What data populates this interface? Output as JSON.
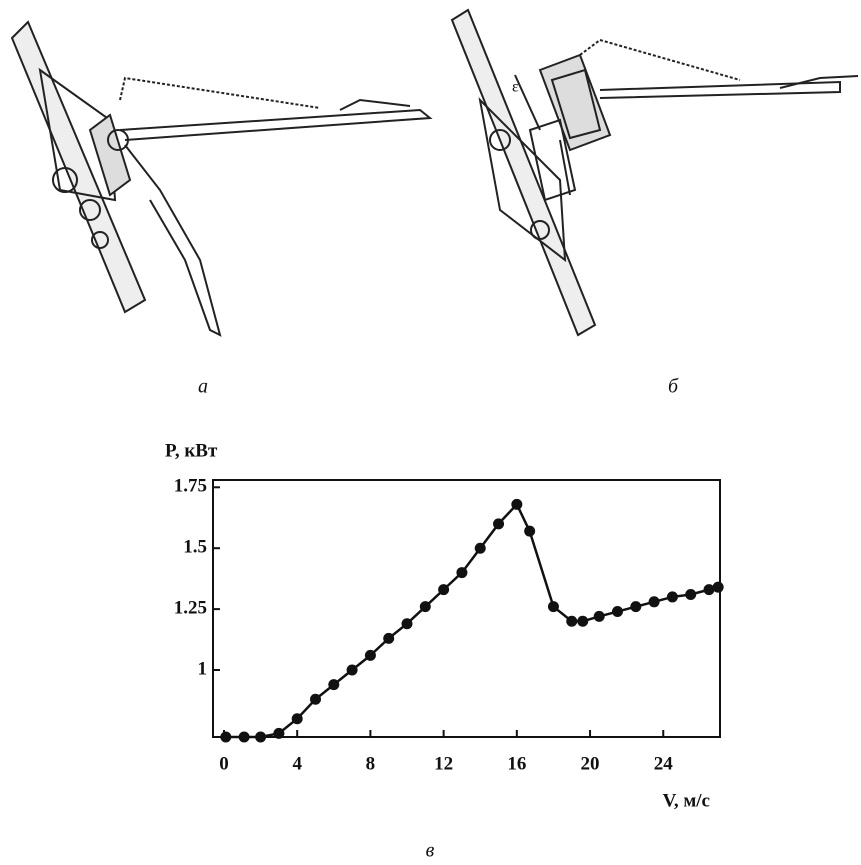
{
  "captions": {
    "a": "а",
    "b": "б",
    "c": "в"
  },
  "drawing_b_label": "ε",
  "chart_data": {
    "type": "line",
    "ylabel": "P, кВт",
    "xlabel": "V, м/с",
    "x": [
      0.1,
      1.1,
      2,
      3,
      4,
      5,
      6,
      7,
      8,
      9,
      10,
      11,
      12,
      13,
      14,
      15,
      16,
      16.7,
      18,
      19,
      19.6,
      20.5,
      21.5,
      22.5,
      23.5,
      24.5,
      25.5,
      26.5,
      27
    ],
    "values": [
      0.725,
      0.725,
      0.725,
      0.74,
      0.8,
      0.88,
      0.94,
      1.0,
      1.06,
      1.13,
      1.19,
      1.26,
      1.33,
      1.4,
      1.5,
      1.6,
      1.68,
      1.57,
      1.26,
      1.2,
      1.2,
      1.22,
      1.24,
      1.26,
      1.28,
      1.3,
      1.31,
      1.33,
      1.34
    ],
    "color": "#111111",
    "xlim": [
      -0.6,
      27.1
    ],
    "ylim": [
      0.725,
      1.78
    ],
    "xticks": [
      0,
      4,
      8,
      12,
      16,
      20,
      24
    ],
    "yticks": [
      1,
      1.25,
      1.5,
      1.75
    ]
  }
}
